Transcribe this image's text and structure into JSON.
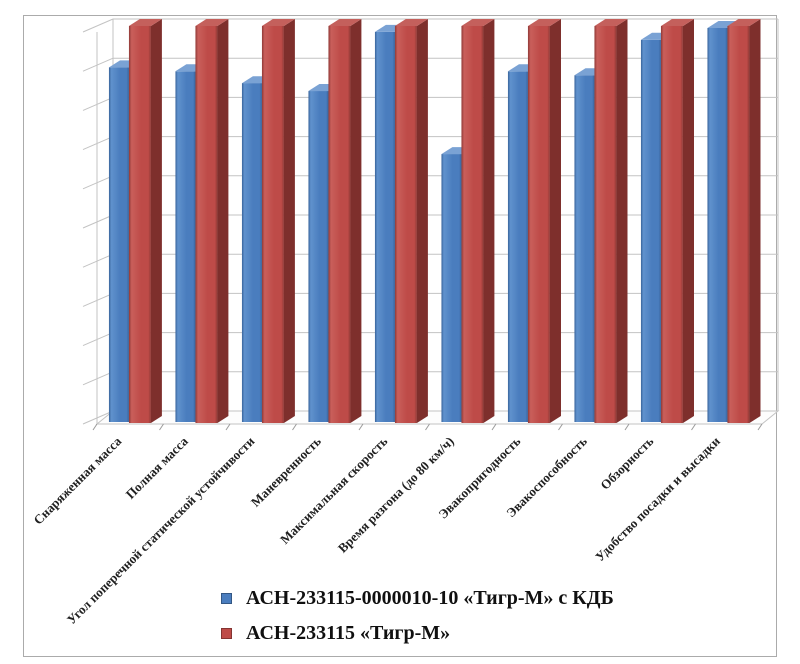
{
  "chart_data": {
    "type": "bar",
    "variant": "3d-clustered-column",
    "title": "",
    "xlabel": "",
    "ylabel": "",
    "ylim": [
      0,
      10
    ],
    "gridline_count": 11,
    "grid": true,
    "y_axis_value_labels_visible": false,
    "legend_position": "bottom",
    "legend_marker": "square",
    "categories": [
      "Снаряженная масса",
      "Полная масса",
      "Угол поперечной статической устойчивости",
      "Маневренность",
      "Максимальная скорость",
      "Время разгона (до 80 км/ч)",
      "Эвакопригодность",
      "Эвакоспособность",
      "Обзорность",
      "Удобство посадки и высадки"
    ],
    "series": [
      {
        "name": "АСН-233115-0000010-10 «Тигр-М» с КДБ",
        "color": "#4A7DBE",
        "values": [
          9.0,
          8.9,
          8.6,
          8.4,
          9.9,
          6.8,
          8.9,
          8.8,
          9.7,
          10.0
        ]
      },
      {
        "name": "АСН-233115 «Тигр-М»",
        "color": "#BE4B48",
        "values": [
          10,
          10,
          10,
          10,
          10,
          10,
          10,
          10,
          10,
          10
        ]
      }
    ]
  },
  "style": {
    "background": "#FFFFFF",
    "frame_color": "#ABABAB",
    "grid_color": "#C3C3C3",
    "axis_color": "#9A9A9A",
    "category_label_color": "#1F1F1F",
    "blue": {
      "front": "#4A7DBE",
      "front_light": "#6092CD",
      "front_dark": "#38639B",
      "side": "#2C5787",
      "top": "#7AA2D4"
    },
    "red": {
      "front": "#BE4B48",
      "front_light": "#C95F5B",
      "front_dark": "#8F3936",
      "side": "#7E2F2C",
      "top": "#C4605C"
    }
  }
}
